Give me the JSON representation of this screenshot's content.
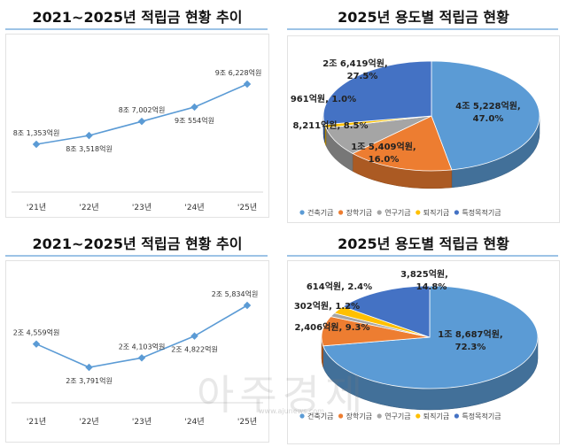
{
  "watermark": {
    "main": "아주경제",
    "sub": "www.ajunews.com"
  },
  "chart_data": [
    {
      "type": "line",
      "title": "2021~2025년 적립금 현황 추이",
      "categories": [
        "'21년",
        "'22년",
        "'23년",
        "'24년",
        "'25년"
      ],
      "values_eok": [
        81353,
        83518,
        87002,
        90554,
        96228
      ],
      "labels": [
        "8조 1,353억원",
        "8조 3,518억원",
        "8조 7,002억원",
        "9조 554억원",
        "9조 6,228억원"
      ],
      "color": "#5b9bd5"
    },
    {
      "type": "pie",
      "title": "2025년 용도별 적립금 현황",
      "series": [
        {
          "name": "건축기금",
          "value_eok": 45228,
          "percent": 47.0,
          "label": "4조 5,228억원,",
          "pct_label": "47.0%",
          "color": "#5b9bd5"
        },
        {
          "name": "장학기금",
          "value_eok": 15409,
          "percent": 16.0,
          "label": "1조 5,409억원,",
          "pct_label": "16.0%",
          "color": "#ed7d31"
        },
        {
          "name": "연구기금",
          "value_eok": 8211,
          "percent": 8.5,
          "label": "8,211억원, 8.5%",
          "pct_label": "",
          "color": "#a5a5a5"
        },
        {
          "name": "퇴직기금",
          "value_eok": 961,
          "percent": 1.0,
          "label": "961억원, 1.0%",
          "pct_label": "",
          "color": "#ffc000"
        },
        {
          "name": "특정목적기금",
          "value_eok": 26419,
          "percent": 27.5,
          "label": "2조 6,419억원,",
          "pct_label": "27.5%",
          "color": "#4472c4"
        }
      ],
      "legend_position": "bottom"
    },
    {
      "type": "line",
      "title": "2021~2025년 적립금 현황 추이",
      "categories": [
        "'21년",
        "'22년",
        "'23년",
        "'24년",
        "'25년"
      ],
      "values_eok": [
        24559,
        23791,
        24103,
        24822,
        25834
      ],
      "labels": [
        "2조 4,559억원",
        "2조 3,791억원",
        "2조 4,103억원",
        "2조 4,822억원",
        "2조 5,834억원"
      ],
      "color": "#5b9bd5"
    },
    {
      "type": "pie",
      "title": "2025년 용도별 적립금 현황",
      "series": [
        {
          "name": "건축기금",
          "value_eok": 18687,
          "percent": 72.3,
          "label": "1조 8,687억원,",
          "pct_label": "72.3%",
          "color": "#5b9bd5"
        },
        {
          "name": "장학기금",
          "value_eok": 2406,
          "percent": 9.3,
          "label": "2,406억원, 9.3%",
          "pct_label": "",
          "color": "#ed7d31"
        },
        {
          "name": "연구기금",
          "value_eok": 302,
          "percent": 1.2,
          "label": "302억원, 1.2%",
          "pct_label": "",
          "color": "#a5a5a5"
        },
        {
          "name": "퇴직기금",
          "value_eok": 614,
          "percent": 2.4,
          "label": "614억원, 2.4%",
          "pct_label": "",
          "color": "#ffc000"
        },
        {
          "name": "특정목적기금",
          "value_eok": 3825,
          "percent": 14.8,
          "label": "3,825억원,",
          "pct_label": "14.8%",
          "color": "#4472c4"
        }
      ],
      "legend_position": "bottom"
    }
  ]
}
